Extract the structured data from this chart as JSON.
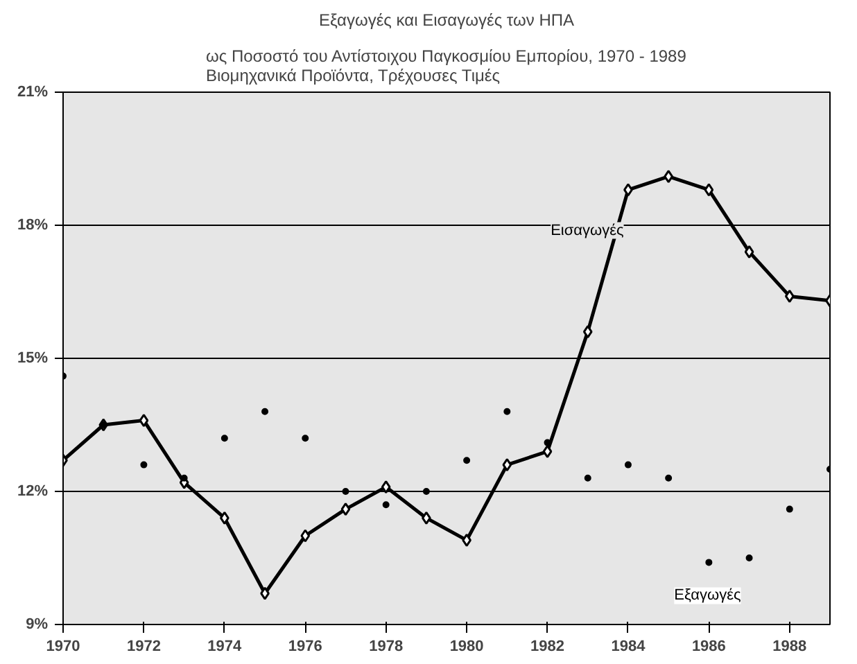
{
  "chart_data": {
    "type": "line",
    "title": "Εξαγωγές και Εισαγωγές των ΗΠΑ",
    "subtitle": "ως Ποσοστό του Αντίστοιχου Παγκοσμίου Εμπορίου, 1970 - 1989\nΒιομηχανικά Προϊόντα, Τρέχουσες Τιμές",
    "x": [
      1970,
      1971,
      1972,
      1973,
      1974,
      1975,
      1976,
      1977,
      1978,
      1979,
      1980,
      1981,
      1982,
      1983,
      1984,
      1985,
      1986,
      1987,
      1988,
      1989
    ],
    "series": [
      {
        "name": "Εισαγωγές",
        "marker": "diamond",
        "color": "#000000",
        "values": [
          12.7,
          13.5,
          13.6,
          12.2,
          11.4,
          9.7,
          11.0,
          11.6,
          12.1,
          11.4,
          10.9,
          12.6,
          12.9,
          15.6,
          18.8,
          19.1,
          18.8,
          17.4,
          16.4,
          16.3
        ]
      },
      {
        "name": "Εξαγωγές",
        "type": "scatter",
        "marker": "circle",
        "color": "#000000",
        "values": [
          14.6,
          13.5,
          12.6,
          12.3,
          13.2,
          13.8,
          13.2,
          12.0,
          11.7,
          12.0,
          12.7,
          13.8,
          13.1,
          12.3,
          12.6,
          12.3,
          10.4,
          10.5,
          11.6,
          12.5
        ]
      }
    ],
    "xlim": [
      1970,
      1989
    ],
    "xticks": [
      1970,
      1972,
      1974,
      1976,
      1978,
      1980,
      1982,
      1984,
      1986,
      1988
    ],
    "ylim": [
      9,
      21
    ],
    "yticks": [
      {
        "value": 9,
        "label": "9%"
      },
      {
        "value": 12,
        "label": "12%"
      },
      {
        "value": 15,
        "label": "15%"
      },
      {
        "value": 18,
        "label": "18%"
      },
      {
        "value": 21,
        "label": "21%"
      }
    ],
    "grid": "y"
  }
}
